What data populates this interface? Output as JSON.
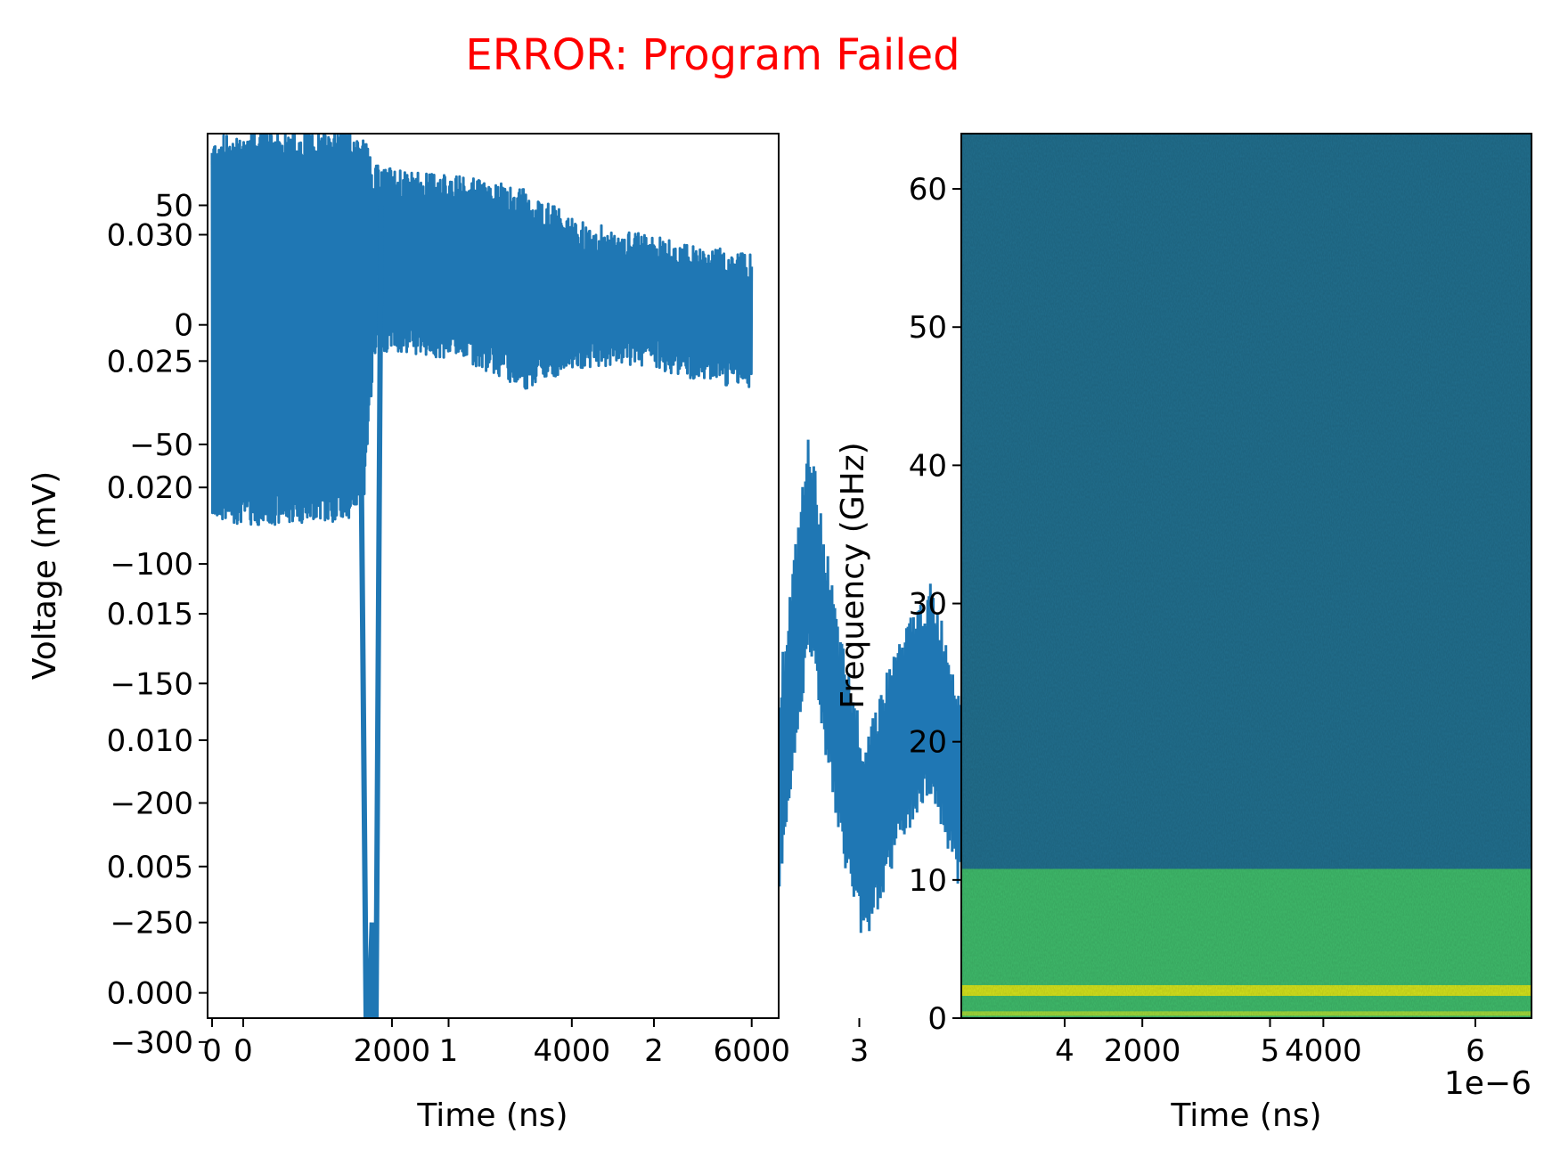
{
  "title": "ERROR: Program Failed",
  "colors": {
    "title": "#ff0000",
    "trace": "#1f77b4",
    "spec_bg": "#216f8e",
    "spec_band": "#3fbb6b",
    "spec_line": "#d4e21c",
    "spec_line2": "#9fd83a"
  },
  "chart_data": [
    {
      "type": "line",
      "panel": "left",
      "xlabel": "Time (ns)",
      "ylabel": "Voltage (mV)",
      "xlim": [
        -50,
        6300
      ],
      "ylim": [
        -290,
        80
      ],
      "xticks": [
        0,
        2000,
        4000,
        6000
      ],
      "xtick_labels": [
        "0",
        "2000",
        "4000",
        "6000"
      ],
      "yticks": [
        50,
        0,
        -50,
        -100,
        -150,
        -200,
        -250,
        -300
      ],
      "ytick_labels": [
        "50",
        "0",
        "−50",
        "−100",
        "−150",
        "−200",
        "−250",
        "−300"
      ],
      "series": [
        {
          "envelope_upper": [
            [
              0,
              72
            ],
            [
              500,
              75
            ],
            [
              1000,
              74
            ],
            [
              1500,
              76
            ],
            [
              1700,
              72
            ],
            [
              1800,
              60
            ],
            [
              2200,
              57
            ],
            [
              2800,
              55
            ],
            [
              3500,
              50
            ],
            [
              4000,
              38
            ],
            [
              4500,
              33
            ],
            [
              5000,
              30
            ],
            [
              5500,
              26
            ],
            [
              6000,
              23
            ]
          ],
          "envelope_lower": [
            [
              0,
              -75
            ],
            [
              500,
              -77
            ],
            [
              1000,
              -76
            ],
            [
              1500,
              -75
            ],
            [
              1700,
              -65
            ],
            [
              1800,
              -5
            ],
            [
              2200,
              -5
            ],
            [
              2800,
              -8
            ],
            [
              3500,
              -20
            ],
            [
              4000,
              -12
            ],
            [
              4500,
              -10
            ],
            [
              5000,
              -12
            ],
            [
              5500,
              -18
            ],
            [
              6000,
              -20
            ]
          ],
          "spike": {
            "x": 1760,
            "min": -320
          }
        }
      ]
    },
    {
      "type": "line",
      "panel": "secondary-axes",
      "xlim": [
        0,
        1
      ],
      "ylim": [
        -0.001,
        0.034
      ],
      "xticks": [
        0,
        1,
        2,
        3,
        4,
        5,
        6
      ],
      "xtick_labels": [
        "0",
        "1",
        "2",
        "3",
        "4",
        "5",
        "6"
      ],
      "x_multiplier_label": "1e−6",
      "yticks": [
        0.0,
        0.005,
        0.01,
        0.015,
        0.02,
        0.025,
        0.03
      ],
      "ytick_labels": [
        "0.000",
        "0.005",
        "0.010",
        "0.015",
        "0.020",
        "0.025",
        "0.030"
      ],
      "series": [
        {
          "x_us": [
            2.3,
            2.55,
            2.8,
            3.0,
            3.3,
            3.55,
            3.8
          ],
          "values": [
            0.008,
            0.018,
            0.01,
            0.006,
            0.01,
            0.012,
            0.008
          ]
        }
      ]
    },
    {
      "type": "heatmap",
      "panel": "right",
      "xlabel": "Time (ns)",
      "ylabel": "Frequency (GHz)",
      "xlim": [
        0,
        6300
      ],
      "ylim": [
        0,
        64
      ],
      "xticks": [
        2000,
        4000
      ],
      "xtick_labels": [
        "2000",
        "4000"
      ],
      "yticks": [
        0,
        10,
        20,
        30,
        40,
        50,
        60
      ],
      "ytick_labels": [
        "0",
        "10",
        "20",
        "30",
        "40",
        "50",
        "60"
      ],
      "bands": [
        {
          "from_ghz": 0,
          "to_ghz": 10.8,
          "level": "high"
        },
        {
          "at_ghz": 2.0,
          "level": "peak"
        },
        {
          "at_ghz": 0.3,
          "level": "peak"
        }
      ]
    }
  ]
}
